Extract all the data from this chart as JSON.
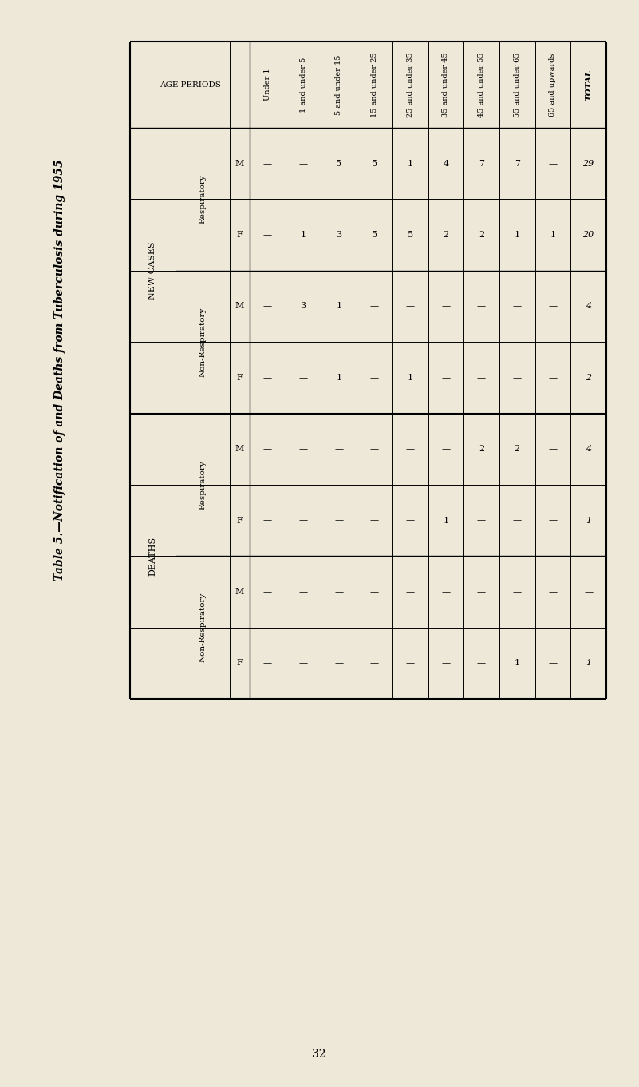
{
  "title": "Table 5.—Notification of and Deaths from Tuberculosis during 1955",
  "page_number": "32",
  "background_color": "#ede8d8",
  "age_periods": [
    "Under 1",
    "1 and under 5",
    "5 and under 15",
    "15 and under 25",
    "25 and under 35",
    "35 and under 45",
    "45 and under 55",
    "55 and under 65",
    "65 and upwards",
    "TOTAL"
  ],
  "row_structure": [
    {
      "group": "NEW CASES",
      "subgroup": "Respiratory",
      "mf": "M"
    },
    {
      "group": "NEW CASES",
      "subgroup": "Respiratory",
      "mf": "F"
    },
    {
      "group": "NEW CASES",
      "subgroup": "Non-Respiratory",
      "mf": "M"
    },
    {
      "group": "NEW CASES",
      "subgroup": "Non-Respiratory",
      "mf": "F"
    },
    {
      "group": "DEATHS",
      "subgroup": "Respiratory",
      "mf": "M"
    },
    {
      "group": "DEATHS",
      "subgroup": "Respiratory",
      "mf": "F"
    },
    {
      "group": "DEATHS",
      "subgroup": "Non-Respiratory",
      "mf": "M"
    },
    {
      "group": "DEATHS",
      "subgroup": "Non-Respiratory",
      "mf": "F"
    }
  ],
  "table_data": [
    [
      "—",
      "—",
      "5",
      "5",
      "1",
      "4",
      "7",
      "7",
      "—",
      "29"
    ],
    [
      "—",
      "1",
      "3",
      "5",
      "5",
      "2",
      "2",
      "1",
      "1",
      "20"
    ],
    [
      "—",
      "3",
      "1",
      "—",
      "—",
      "—",
      "—",
      "—",
      "—",
      "4"
    ],
    [
      "—",
      "—",
      "1",
      "—",
      "1",
      "—",
      "—",
      "—",
      "—",
      "2"
    ],
    [
      "—",
      "—",
      "—",
      "—",
      "—",
      "—",
      "2",
      "2",
      "—",
      "4"
    ],
    [
      "—",
      "—",
      "—",
      "—",
      "—",
      "1",
      "—",
      "—",
      "—",
      "1"
    ],
    [
      "—",
      "—",
      "—",
      "—",
      "—",
      "—",
      "—",
      "—",
      "—",
      "—"
    ],
    [
      "—",
      "—",
      "—",
      "—",
      "—",
      "—",
      "—",
      "1",
      "—",
      "1"
    ]
  ]
}
